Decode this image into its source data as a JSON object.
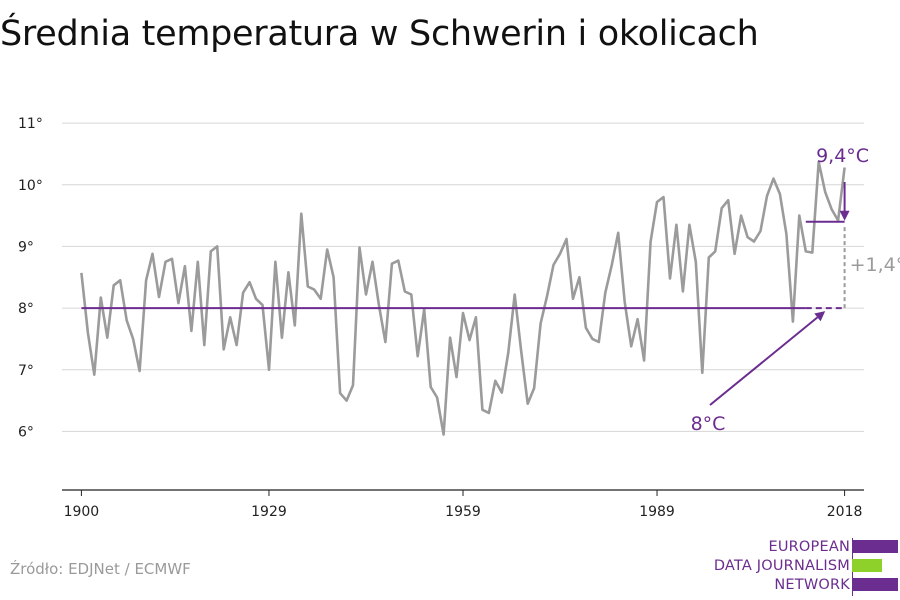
{
  "title": "Średnia temperatura w Schwerin i okolicach",
  "source": "Źródło: EDJNet / ECMWF",
  "logo": {
    "lines": [
      "EUROPEAN",
      "DATA JOURNALISM",
      "NETWORK"
    ],
    "colors": {
      "purple": "#6b2d8f",
      "green": "#8fd12b"
    }
  },
  "colors": {
    "series": "#9b9b9b",
    "accent": "#6b2d8f",
    "grid": "#d6d6d6",
    "axis": "#222222",
    "diff": "#9b9b9b"
  },
  "chart_data": {
    "type": "line",
    "title": "Średnia temperatura w Schwerin i okolicach",
    "xlim": [
      1897,
      2021
    ],
    "ylim": [
      5.05,
      11.05
    ],
    "x_ticks": [
      1900,
      1929,
      1959,
      1989,
      2018
    ],
    "x_tick_labels": [
      "1900",
      "1929",
      "1959",
      "1989",
      "2018"
    ],
    "y_ticks": [
      6,
      7,
      8,
      9,
      10,
      11
    ],
    "y_tick_labels": [
      "6°",
      "7°",
      "8°",
      "9°",
      "10°",
      "11°"
    ],
    "grid": true,
    "series": [
      {
        "x": [
          1900,
          1901,
          1902,
          1903,
          1904,
          1905,
          1906,
          1907,
          1908,
          1909,
          1910,
          1911,
          1912,
          1913,
          1914,
          1915,
          1916,
          1917,
          1918,
          1919,
          1920,
          1921,
          1922,
          1923,
          1924,
          1925,
          1926,
          1927,
          1928,
          1929,
          1930,
          1931,
          1932,
          1933,
          1934,
          1935,
          1936,
          1937,
          1938,
          1939,
          1940,
          1941,
          1942,
          1943,
          1944,
          1945,
          1946,
          1947,
          1948,
          1949,
          1950,
          1951,
          1952,
          1953,
          1954,
          1955,
          1956,
          1957,
          1958,
          1959,
          1960,
          1961,
          1962,
          1963,
          1964,
          1965,
          1966,
          1967,
          1968,
          1969,
          1970,
          1971,
          1972,
          1973,
          1974,
          1975,
          1976,
          1977,
          1978,
          1979,
          1980,
          1981,
          1982,
          1983,
          1984,
          1985,
          1986,
          1987,
          1988,
          1989,
          1990,
          1991,
          1992,
          1993,
          1994,
          1995,
          1996,
          1997,
          1998,
          1999,
          2000,
          2001,
          2002,
          2003,
          2004,
          2005,
          2006,
          2007,
          2008,
          2009,
          2010,
          2011,
          2012,
          2013,
          2014,
          2015,
          2016,
          2017,
          2018
        ],
        "values": [
          8.57,
          7.6,
          6.92,
          8.17,
          7.52,
          8.37,
          8.45,
          7.8,
          7.5,
          6.98,
          8.45,
          8.88,
          8.18,
          8.75,
          8.8,
          8.08,
          8.68,
          7.63,
          8.75,
          7.4,
          8.92,
          9.0,
          7.33,
          7.85,
          7.4,
          8.25,
          8.42,
          8.15,
          8.05,
          7.0,
          8.75,
          7.52,
          8.58,
          7.72,
          9.53,
          8.35,
          8.3,
          8.15,
          8.95,
          8.5,
          6.62,
          6.5,
          6.75,
          8.98,
          8.22,
          8.75,
          8.05,
          7.45,
          8.72,
          8.77,
          8.27,
          8.22,
          7.22,
          7.98,
          6.72,
          6.55,
          5.95,
          7.52,
          6.88,
          7.92,
          7.48,
          7.85,
          6.35,
          6.3,
          6.82,
          6.63,
          7.28,
          8.22,
          7.3,
          6.45,
          6.7,
          7.75,
          8.2,
          8.7,
          8.88,
          9.12,
          8.15,
          8.5,
          7.68,
          7.5,
          7.45,
          8.25,
          8.7,
          9.22,
          8.1,
          7.38,
          7.82,
          7.15,
          9.08,
          9.72,
          9.8,
          8.48,
          9.35,
          8.27,
          9.35,
          8.75,
          6.95,
          8.82,
          8.92,
          9.62,
          9.75,
          8.88,
          9.5,
          9.15,
          9.08,
          9.25,
          9.82,
          10.1,
          9.85,
          9.2,
          7.78,
          9.5,
          8.92,
          8.9,
          10.37,
          9.88,
          9.6,
          9.42,
          10.28
        ]
      }
    ],
    "baseline": {
      "value": 8.0,
      "label": "8°C",
      "x_start": 1900,
      "x_solid_end": 2012,
      "x_end": 2018
    },
    "recent": {
      "value": 9.4,
      "label": "9,4°C",
      "x_start": 2012,
      "x_end": 2018
    },
    "difference_label": "+1,4°"
  }
}
